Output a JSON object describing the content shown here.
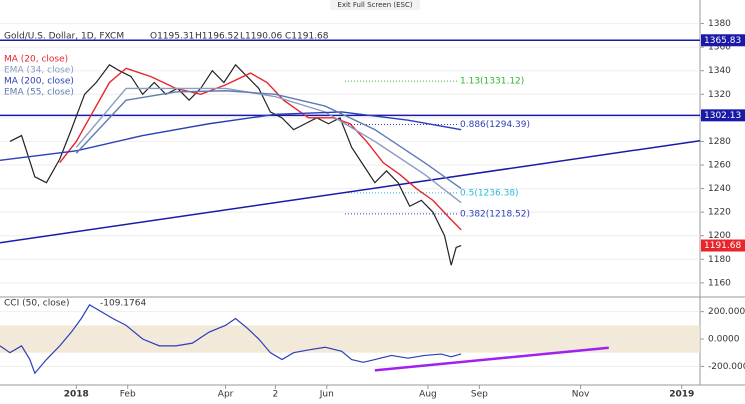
{
  "top_bar": "Exit Full Screen (ESC)",
  "chart_data": [
    {
      "type": "line",
      "title": "Gold/U.S. Dollar, 1D, FXCM",
      "header_values": [
        "O1195.31",
        "H1196.52",
        "L1190.06",
        "C1191.68"
      ],
      "xlim": [
        -46,
        376
      ],
      "ylim": [
        1148,
        1400
      ],
      "xticks": [
        {
          "value": 0,
          "label": "2018"
        },
        {
          "value": 31,
          "label": "Feb"
        },
        {
          "value": 90,
          "label": "Apr"
        },
        {
          "value": 120,
          "label": "2"
        },
        {
          "value": 151,
          "label": "Jun"
        },
        {
          "value": 212,
          "label": "Aug"
        },
        {
          "value": 243,
          "label": "Sep"
        },
        {
          "value": 304,
          "label": "Nov"
        },
        {
          "value": 365,
          "label": "2019"
        }
      ],
      "yticks": [
        1160,
        1180,
        1200,
        1220,
        1240,
        1260,
        1280,
        1300,
        1320,
        1340,
        1360,
        1380
      ],
      "series": [
        {
          "name": "Gold/U.S. Dollar",
          "color": "#222222",
          "x": [
            -40,
            -33,
            -25,
            -18,
            -10,
            -3,
            5,
            12,
            20,
            26,
            33,
            40,
            47,
            54,
            61,
            68,
            75,
            82,
            89,
            96,
            103,
            110,
            117,
            124,
            131,
            138,
            145,
            152,
            159,
            166,
            173,
            180,
            187,
            194,
            201,
            208,
            215,
            222,
            226,
            229,
            232
          ],
          "values": [
            1280,
            1285,
            1250,
            1245,
            1265,
            1290,
            1320,
            1330,
            1345,
            1340,
            1335,
            1320,
            1330,
            1320,
            1325,
            1315,
            1325,
            1340,
            1330,
            1345,
            1335,
            1325,
            1305,
            1300,
            1290,
            1295,
            1300,
            1295,
            1300,
            1275,
            1260,
            1245,
            1255,
            1245,
            1225,
            1230,
            1220,
            1200,
            1175,
            1190,
            1191.68
          ]
        },
        {
          "name": "MA (20, close)",
          "color": "#e8252b",
          "x": [
            -10,
            0,
            10,
            20,
            30,
            45,
            60,
            75,
            90,
            105,
            115,
            125,
            140,
            155,
            165,
            175,
            185,
            195,
            205,
            215,
            225,
            232
          ],
          "values": [
            1262,
            1280,
            1305,
            1330,
            1342,
            1335,
            1325,
            1320,
            1328,
            1338,
            1330,
            1315,
            1300,
            1300,
            1295,
            1280,
            1262,
            1252,
            1240,
            1230,
            1215,
            1205
          ]
        },
        {
          "name": "EMA (34, close)",
          "color": "#8a9bc4",
          "x": [
            0,
            30,
            60,
            90,
            120,
            150,
            180,
            210,
            232
          ],
          "values": [
            1275,
            1325,
            1325,
            1325,
            1318,
            1305,
            1280,
            1252,
            1228
          ]
        },
        {
          "name": "MA (200, close)",
          "color": "#2a3fb8",
          "x": [
            -46,
            0,
            40,
            80,
            120,
            160,
            200,
            232
          ],
          "values": [
            1264,
            1272,
            1285,
            1295,
            1303,
            1305,
            1298,
            1290
          ]
        },
        {
          "name": "EMA (55, close)",
          "color": "#5f7bb0",
          "x": [
            0,
            30,
            60,
            90,
            120,
            150,
            180,
            210,
            232
          ],
          "values": [
            1270,
            1315,
            1322,
            1323,
            1320,
            1310,
            1290,
            1262,
            1240
          ]
        }
      ],
      "levels": [
        {
          "value": 1365.83,
          "label": "1365.83"
        },
        {
          "value": 1302.13,
          "label": "1302.13"
        }
      ],
      "fib_levels": [
        {
          "value": 1331.12,
          "label": "1.13(1331.12)",
          "color": "#2fb52f"
        },
        {
          "value": 1294.39,
          "label": "0.886(1294.39)",
          "color": "#2a3fb8"
        },
        {
          "value": 1236.38,
          "label": "0.5(1236.38)",
          "color": "#27b8d8"
        },
        {
          "value": 1218.52,
          "label": "0.382(1218.52)",
          "color": "#2a3fb8"
        }
      ],
      "trendline": {
        "x": [
          -46,
          376
        ],
        "values": [
          1194,
          1280.6
        ]
      },
      "last_price": {
        "value": 1191.68,
        "label": "1191.68"
      }
    },
    {
      "type": "line",
      "title": "CCI (50, close)",
      "value_label": "-109.1764",
      "xlim": [
        -46,
        376
      ],
      "ylim": [
        -336,
        307
      ],
      "yticks": [
        {
          "value": 200,
          "label": "200.0000"
        },
        {
          "value": 0,
          "label": "0.0000"
        },
        {
          "value": -200,
          "label": "-200.0000"
        }
      ],
      "band": [
        -100,
        100
      ],
      "series": [
        {
          "name": "CCI (50, close)",
          "color": "#2a3fb8",
          "x": [
            -46,
            -40,
            -33,
            -28,
            -25,
            -18,
            -10,
            -3,
            3,
            8,
            15,
            22,
            30,
            40,
            50,
            60,
            70,
            80,
            90,
            96,
            103,
            110,
            117,
            124,
            131,
            140,
            150,
            160,
            166,
            173,
            180,
            190,
            200,
            210,
            220,
            226,
            232
          ],
          "values": [
            -50,
            -100,
            -50,
            -150,
            -250,
            -150,
            -50,
            50,
            150,
            250,
            200,
            150,
            100,
            0,
            -50,
            -50,
            -30,
            50,
            100,
            150,
            80,
            0,
            -100,
            -150,
            -100,
            -80,
            -60,
            -90,
            -150,
            -170,
            -150,
            -120,
            -140,
            -120,
            -110,
            -130,
            -109.18
          ]
        }
      ],
      "trendline": {
        "x": [
          180,
          321
        ],
        "values": [
          -229,
          -64
        ]
      }
    }
  ]
}
